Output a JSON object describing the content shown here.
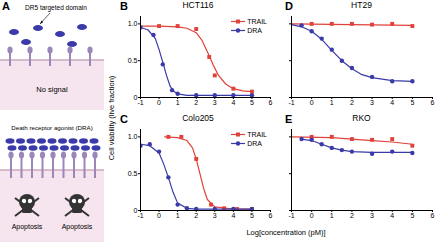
{
  "diagram": {
    "panel": "A",
    "top": {
      "label": "DR5 targeted domain",
      "state": "No signal"
    },
    "bottom": {
      "label": "Death receptor agonist (DRA)",
      "outcome": [
        "Apoptosis",
        "Apoptosis"
      ]
    }
  },
  "x_label": "Log[concentration (pM)]",
  "y_label": "Cell viability (live fraction)",
  "chart_data": [
    {
      "type": "scatter",
      "panel": "B",
      "title": "HCT116",
      "legend": "upper right",
      "xlim": [
        -1,
        6
      ],
      "xticks": [
        -1,
        0,
        1,
        2,
        3,
        4,
        5,
        6
      ],
      "ylim": [
        0,
        1.1
      ],
      "yticks": [
        0,
        0.5,
        {
          "value": 1,
          "label": "1.0"
        }
      ],
      "series": [
        {
          "name": "TRAIL",
          "color": "#e0413a",
          "marker": "square",
          "x": [
            0,
            1,
            2,
            2.7,
            3,
            4,
            5
          ],
          "values": [
            0.97,
            0.97,
            0.93,
            0.55,
            0.3,
            0.12,
            0.08
          ],
          "fit_x": [
            -1,
            0,
            1,
            1.5,
            2,
            2.3,
            2.6,
            2.9,
            3.2,
            3.6,
            4,
            4.5,
            5
          ],
          "fit_values": [
            0.97,
            0.97,
            0.96,
            0.94,
            0.88,
            0.78,
            0.62,
            0.45,
            0.3,
            0.18,
            0.12,
            0.09,
            0.08
          ]
        },
        {
          "name": "DRA",
          "color": "#3a3aa8",
          "marker": "circle",
          "x": [
            -1,
            -0.3,
            0.2,
            0.7,
            1,
            2,
            3,
            4,
            5
          ],
          "values": [
            0.95,
            0.85,
            0.45,
            0.1,
            0.05,
            0.03,
            0.03,
            0.03,
            0.03
          ],
          "fit_x": [
            -1,
            -0.6,
            -0.2,
            0,
            0.2,
            0.4,
            0.6,
            0.8,
            1,
            1.5,
            2,
            3,
            5
          ],
          "fit_values": [
            0.95,
            0.92,
            0.8,
            0.65,
            0.48,
            0.3,
            0.15,
            0.08,
            0.05,
            0.03,
            0.03,
            0.03,
            0.03
          ]
        }
      ]
    },
    {
      "type": "scatter",
      "panel": "C",
      "title": "Colo205",
      "legend": "upper right",
      "xlim": [
        -1,
        6
      ],
      "xticks": [
        -1,
        0,
        1,
        2,
        3,
        4,
        5,
        6
      ],
      "ylim": [
        0,
        1.1
      ],
      "yticks": [
        0,
        0.5,
        {
          "value": 1,
          "label": "1.0"
        }
      ],
      "series": [
        {
          "name": "TRAIL",
          "color": "#e0413a",
          "marker": "square",
          "x": [
            0.5,
            1.2,
            2,
            2.8,
            3.5,
            4.2,
            5
          ],
          "values": [
            1.0,
            1.0,
            0.7,
            0.08,
            0.03,
            0.02,
            0.02
          ],
          "fit_x": [
            0.3,
            1,
            1.5,
            1.8,
            2,
            2.2,
            2.4,
            2.6,
            3,
            4,
            5
          ],
          "fit_values": [
            1.0,
            0.99,
            0.95,
            0.85,
            0.7,
            0.5,
            0.3,
            0.15,
            0.05,
            0.02,
            0.02
          ]
        },
        {
          "name": "DRA",
          "color": "#3a3aa8",
          "marker": "circle",
          "x": [
            -1,
            -0.5,
            0,
            0.5,
            1,
            1.5,
            2,
            3,
            4,
            5
          ],
          "values": [
            0.88,
            0.9,
            0.8,
            0.45,
            0.08,
            0.03,
            0.02,
            0.02,
            0.02,
            0.02
          ],
          "fit_x": [
            -1,
            -0.5,
            0,
            0.25,
            0.5,
            0.75,
            1,
            1.5,
            2,
            5
          ],
          "fit_values": [
            0.9,
            0.88,
            0.78,
            0.63,
            0.45,
            0.25,
            0.1,
            0.03,
            0.02,
            0.02
          ]
        }
      ]
    },
    {
      "type": "scatter",
      "panel": "D",
      "title": "HT29",
      "tick_labels": "x",
      "xlim": [
        -1,
        6
      ],
      "xticks": [
        -1,
        0,
        1,
        2,
        3,
        4,
        5,
        6
      ],
      "ylim": [
        0,
        1.1
      ],
      "yticks": [
        0,
        0.5,
        1
      ],
      "series": [
        {
          "name": "TRAIL",
          "color": "#e0413a",
          "marker": "square",
          "x": [
            0,
            1,
            2,
            3,
            4,
            5
          ],
          "values": [
            1.0,
            1.0,
            1.0,
            0.99,
            1.0,
            0.97
          ],
          "fit_x": [
            -1,
            5
          ],
          "fit_values": [
            1.0,
            0.98
          ]
        },
        {
          "name": "DRA",
          "color": "#3a3aa8",
          "marker": "circle",
          "x": [
            -0.5,
            0,
            0.5,
            1,
            1.5,
            2,
            3,
            4,
            5
          ],
          "values": [
            0.98,
            0.9,
            0.8,
            0.65,
            0.5,
            0.4,
            0.28,
            0.22,
            0.22
          ],
          "fit_x": [
            -1,
            -0.5,
            0,
            0.5,
            1,
            1.5,
            2,
            2.5,
            3,
            4,
            5
          ],
          "fit_values": [
            0.99,
            0.96,
            0.9,
            0.79,
            0.64,
            0.5,
            0.39,
            0.31,
            0.27,
            0.23,
            0.22
          ]
        }
      ]
    },
    {
      "type": "scatter",
      "panel": "E",
      "title": "RKO",
      "tick_labels": "x",
      "xlim": [
        -1,
        6
      ],
      "xticks": [
        -1,
        0,
        1,
        2,
        3,
        4,
        5,
        6
      ],
      "ylim": [
        0,
        1.1
      ],
      "yticks": [
        0,
        0.5,
        1
      ],
      "series": [
        {
          "name": "TRAIL",
          "color": "#e0413a",
          "marker": "square",
          "x": [
            0,
            1,
            2,
            3,
            4,
            5
          ],
          "values": [
            1.0,
            1.0,
            0.97,
            0.96,
            0.97,
            0.88
          ],
          "fit_x": [
            -1,
            1,
            2,
            3,
            4,
            5
          ],
          "fit_values": [
            1.0,
            0.99,
            0.97,
            0.95,
            0.93,
            0.9
          ]
        },
        {
          "name": "DRA",
          "color": "#3a3aa8",
          "marker": "circle",
          "x": [
            -0.5,
            0,
            0.5,
            1,
            1.5,
            2,
            3,
            4,
            5
          ],
          "values": [
            0.97,
            0.96,
            0.9,
            0.85,
            0.82,
            0.8,
            0.77,
            0.8,
            0.78
          ],
          "fit_x": [
            -0.5,
            0,
            0.5,
            1,
            1.5,
            2,
            3,
            4,
            5
          ],
          "fit_values": [
            0.97,
            0.95,
            0.9,
            0.85,
            0.82,
            0.8,
            0.79,
            0.79,
            0.79
          ]
        }
      ]
    }
  ]
}
